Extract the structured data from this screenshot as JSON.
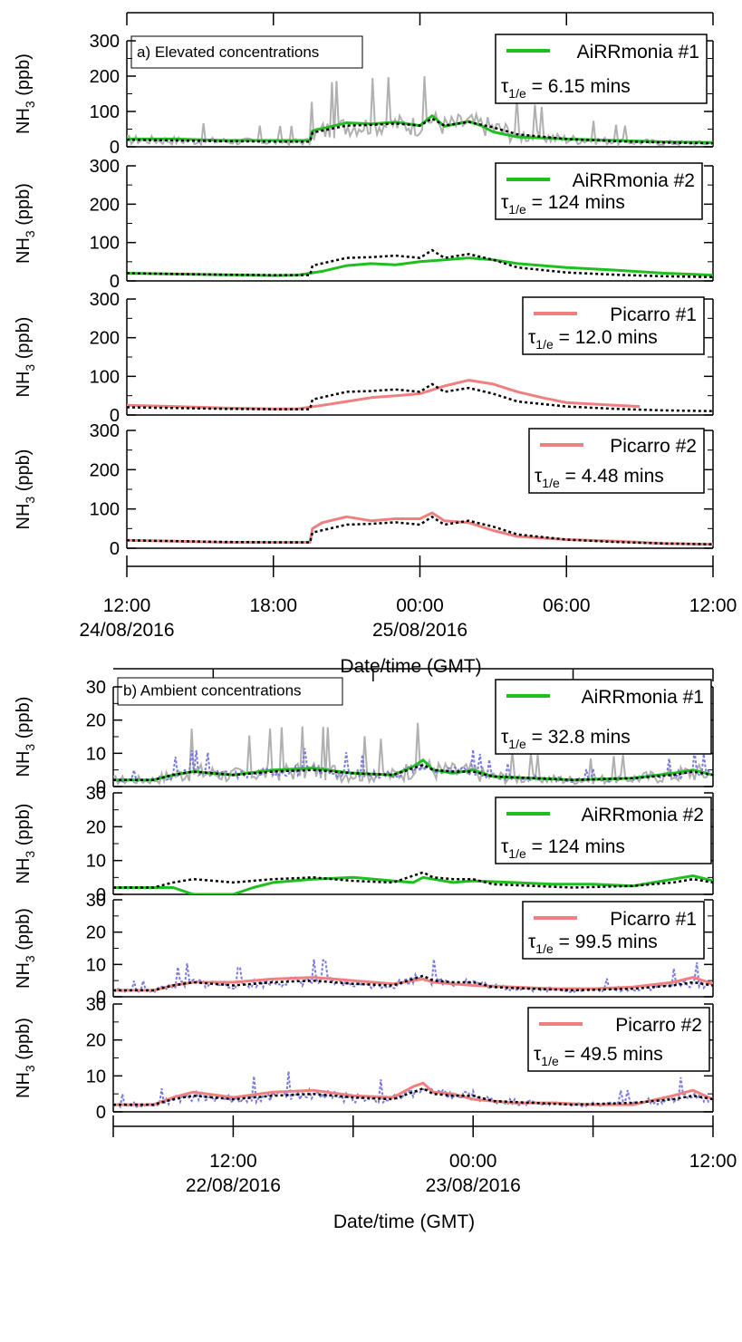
{
  "figure": {
    "xlabel": "Date/time (GMT)",
    "ylabel": "NH3 (ppb)",
    "ylabel_main": "NH",
    "ylabel_sub": "3",
    "ylabel_unit": " (ppb)",
    "tau_main": "τ",
    "tau_sub": "1/e",
    "colors": {
      "airrmonia": "#1fbf1f",
      "picarro": "#f08080",
      "reference": "#000000",
      "raw_grey": "#b0b0b0",
      "raw_blue": "#7a7ae0"
    }
  },
  "chart_data": [
    {
      "type": "line",
      "section_title": "a) Elevated concentrations",
      "ylim": [
        0,
        300
      ],
      "yticks": [
        0,
        100,
        200,
        300
      ],
      "xticks": [
        "12:00\n24/08/2016",
        "18:00",
        "00:00\n25/08/2016",
        "06:00",
        "12:00"
      ],
      "panels": [
        {
          "legend": "AiRRmonia #1",
          "tau": "= 6.15 mins",
          "instrument": "airrmonia",
          "raw": "grey",
          "x_hours": [
            0,
            2,
            4,
            6,
            7.5,
            7.6,
            9,
            10,
            11,
            12,
            12.5,
            13,
            14,
            14.5,
            15,
            16,
            18,
            20,
            22,
            24
          ],
          "values": [
            22,
            22,
            18,
            18,
            18,
            45,
            68,
            65,
            70,
            60,
            88,
            58,
            72,
            60,
            42,
            28,
            22,
            18,
            14,
            12
          ]
        },
        {
          "legend": "AiRRmonia #2",
          "tau": "= 124 mins",
          "instrument": "airrmonia",
          "raw": "none",
          "x_hours": [
            0,
            2,
            4,
            6,
            7,
            8,
            9,
            10,
            11,
            12,
            13,
            14,
            15,
            16,
            18,
            20,
            22,
            24
          ],
          "values": [
            20,
            18,
            16,
            14,
            15,
            25,
            40,
            45,
            42,
            50,
            55,
            60,
            55,
            45,
            35,
            28,
            20,
            15
          ]
        },
        {
          "legend": "Picarro #1",
          "tau": "= 12.0 mins",
          "instrument": "picarro",
          "raw": "none",
          "x_hours": [
            0,
            2,
            4,
            6,
            7,
            8,
            9,
            10,
            11,
            12,
            12.5,
            13,
            14,
            15,
            16,
            17,
            18,
            20,
            21
          ],
          "values": [
            25,
            22,
            18,
            16,
            16,
            25,
            35,
            45,
            50,
            55,
            65,
            75,
            90,
            80,
            60,
            45,
            32,
            25,
            22
          ]
        },
        {
          "legend": "Picarro #2",
          "tau": "= 4.48 mins",
          "instrument": "picarro",
          "raw": "none",
          "x_hours": [
            0,
            2,
            4,
            6,
            7.5,
            7.6,
            8,
            9,
            10,
            11,
            12,
            12.5,
            13,
            14,
            15,
            16,
            18,
            20,
            22,
            24
          ],
          "values": [
            20,
            18,
            15,
            15,
            15,
            50,
            65,
            80,
            70,
            75,
            75,
            90,
            70,
            65,
            45,
            30,
            22,
            18,
            12,
            10
          ]
        }
      ],
      "reference_series": {
        "x_hours": [
          0,
          2,
          4,
          6,
          7.5,
          7.6,
          9,
          10,
          11,
          12,
          12.5,
          13,
          14,
          15,
          16,
          18,
          20,
          22,
          24
        ],
        "values": [
          20,
          18,
          16,
          15,
          15,
          40,
          60,
          62,
          66,
          60,
          80,
          60,
          70,
          55,
          35,
          22,
          16,
          12,
          10
        ]
      }
    },
    {
      "type": "line",
      "section_title": "b) Ambient concentrations",
      "ylim": [
        0,
        30
      ],
      "yticks": [
        0,
        10,
        20,
        30
      ],
      "xticks": [
        "12:00\n22/08/2016",
        "00:00\n23/08/2016",
        "12:00"
      ],
      "panels": [
        {
          "legend": "AiRRmonia #1",
          "tau": "= 32.8 mins",
          "instrument": "airrmonia",
          "raw": "grey_blue",
          "x_hours": [
            0,
            2,
            3,
            4,
            6,
            8,
            10,
            12,
            14,
            15,
            15.5,
            16,
            17,
            18,
            19,
            21,
            23,
            26,
            28,
            29,
            30
          ],
          "values": [
            2,
            2,
            3.5,
            4.5,
            3.5,
            5,
            5.5,
            4,
            3.5,
            6,
            8,
            5,
            4,
            5,
            3,
            2.5,
            2,
            2.5,
            4,
            5,
            3.5
          ]
        },
        {
          "legend": "AiRRmonia #2",
          "tau": "= 124 mins",
          "instrument": "airrmonia",
          "raw": "none",
          "x_hours": [
            0,
            3,
            4,
            6,
            7,
            8,
            10,
            12,
            14,
            15,
            15.5,
            16,
            17,
            18,
            20,
            22,
            24,
            26,
            28,
            29,
            30
          ],
          "values": [
            2,
            2,
            0,
            0,
            2,
            3.5,
            4.5,
            5,
            4,
            3.5,
            5,
            4.5,
            3.5,
            4,
            3.5,
            3,
            3,
            2.5,
            4.5,
            5.5,
            4
          ]
        },
        {
          "legend": "Picarro #1",
          "tau": "= 99.5 mins",
          "instrument": "picarro",
          "raw": "blue",
          "x_hours": [
            0,
            2,
            3,
            4,
            6,
            8,
            10,
            12,
            14,
            15,
            15.5,
            16,
            18,
            20,
            22,
            24,
            26,
            28,
            29,
            30
          ],
          "values": [
            2,
            2,
            3.5,
            4.5,
            4.5,
            5.5,
            6,
            5,
            4,
            5,
            5.5,
            4.5,
            3.5,
            3,
            2.5,
            2.5,
            3,
            4.5,
            6,
            4
          ]
        },
        {
          "legend": "Picarro #2",
          "tau": "= 49.5 mins",
          "instrument": "picarro",
          "raw": "blue",
          "x_hours": [
            0,
            2,
            3,
            4,
            6,
            8,
            10,
            12,
            14,
            15,
            15.5,
            16,
            17,
            18,
            20,
            22,
            24,
            26,
            28,
            29,
            30
          ],
          "values": [
            2,
            2,
            4,
            5.5,
            4,
            5.5,
            6,
            4.5,
            4,
            7,
            8,
            5.5,
            5,
            3.5,
            2.5,
            2.5,
            2,
            2,
            4.5,
            6,
            3.5
          ]
        }
      ],
      "reference_series": {
        "x_hours": [
          0,
          2,
          3,
          4,
          6,
          8,
          10,
          12,
          14,
          15,
          15.5,
          16,
          17,
          18,
          19,
          21,
          23,
          26,
          28,
          29,
          30
        ],
        "values": [
          2,
          2,
          3.5,
          4.5,
          3.5,
          4.5,
          5,
          4,
          3.5,
          5.5,
          6.5,
          5,
          4.5,
          4.5,
          3,
          2.5,
          2,
          2.5,
          3.5,
          4.5,
          3.5
        ]
      }
    }
  ]
}
